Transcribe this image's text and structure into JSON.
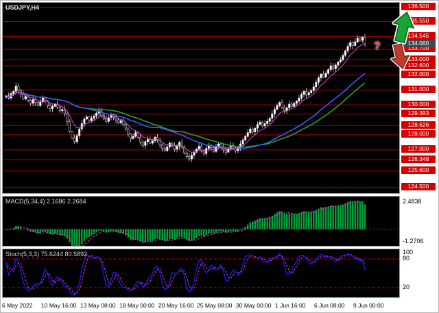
{
  "window": {
    "symbol_label": "USDJPY,H4"
  },
  "colors": {
    "chart_bg": "#000000",
    "level_line": "#b40000",
    "level_box_bg": "#d40000",
    "level_box_text": "#ffffff",
    "current_price_box_bg": "#45474b",
    "up_candle": "#ffffff",
    "down_candle": "#000000",
    "candle_stroke": "#ffffff",
    "ma_fast": "#e048e0",
    "ma_mid": "#3b5bff",
    "ma_slow": "#27a22e",
    "macd_hist": "#00a33c",
    "macd_signal": "#ff2fd0",
    "stoch_main": "#1c1cff",
    "stoch_signal": "#ff2fd0",
    "stoch_level": "#cc0000",
    "arrow_up": "#18a534",
    "arrow_up_edge": "#0b5c1d",
    "arrow_down": "#c23b2a",
    "arrow_down_edge": "#7a1f15",
    "question": "#cc2222"
  },
  "price_axis": {
    "max_label": "136.800",
    "max": 136.8,
    "min_label": "124.120",
    "min": 124.12,
    "current": {
      "label": "134.060",
      "value": 134.06
    },
    "levels": [
      {
        "value": 136.5,
        "label": "136.500"
      },
      {
        "value": 135.55,
        "label": "135.550"
      },
      {
        "value": 134.545,
        "label": "134.545"
      },
      {
        "value": 133.7,
        "label": "133.700"
      },
      {
        "value": 133.0,
        "label": "133.000"
      },
      {
        "value": 132.6,
        "label": "132.600"
      },
      {
        "value": 132.0,
        "label": "132.000"
      },
      {
        "value": 131.0,
        "label": "131.000"
      },
      {
        "value": 130.0,
        "label": "130.000"
      },
      {
        "value": 129.393,
        "label": "129.393"
      },
      {
        "value": 128.626,
        "label": "128.626"
      },
      {
        "value": 128.0,
        "label": "128.000"
      },
      {
        "value": 127.0,
        "label": "127.000"
      },
      {
        "value": 126.348,
        "label": "126.348"
      },
      {
        "value": 125.6,
        "label": "125.600"
      },
      {
        "value": 124.5,
        "label": "124.500"
      }
    ]
  },
  "time_axis": {
    "labels": [
      "6 May 2022",
      "10 May 16:00",
      "13 May 08:00",
      "18 May 00:00",
      "20 May 16:00",
      "25 May 08:00",
      "30 May 00:00",
      "1 Jun 16:00",
      "6 Jun 08:00",
      "9 Jun 00:00"
    ]
  },
  "indicators": {
    "macd": {
      "label": "MACD(5,34,4) 2.1686 2.2684",
      "axis_max_label": "2.4838",
      "axis_min_label": "-1.2706",
      "axis_max": 2.4838,
      "axis_min": -1.2706
    },
    "stoch": {
      "label": "Stoch(5,3,3) 75.6244 80.5892",
      "axis_labels": [
        "100",
        "80",
        "20"
      ],
      "upper": 80,
      "lower": 20
    }
  },
  "annotation": {
    "question_mark": "?"
  },
  "chart_data": {
    "type": "candlestick",
    "title": "USDJPY,H4",
    "symbol": "USDJPY",
    "timeframe": "H4",
    "y_range": [
      124.12,
      136.8
    ],
    "x_axis_labels": [
      "6 May 2022",
      "10 May 16:00",
      "13 May 08:00",
      "18 May 00:00",
      "20 May 16:00",
      "25 May 08:00",
      "30 May 00:00",
      "1 Jun 16:00",
      "6 Jun 08:00",
      "9 Jun 00:00"
    ],
    "horizontal_levels": [
      136.5,
      135.55,
      134.545,
      133.7,
      133.0,
      132.6,
      132.0,
      131.0,
      130.0,
      129.393,
      128.626,
      128.0,
      127.0,
      126.348,
      125.6,
      124.5
    ],
    "current_price": 134.06,
    "first_open": 130.5,
    "closes": [
      130.6,
      130.45,
      130.75,
      130.9,
      131.25,
      130.95,
      130.7,
      130.4,
      130.55,
      130.3,
      130.1,
      130.35,
      130.15,
      129.95,
      130.2,
      130.45,
      130.25,
      129.95,
      129.75,
      129.9,
      130.05,
      129.85,
      129.6,
      129.7,
      129.4,
      128.9,
      128.2,
      127.8,
      127.55,
      127.95,
      128.4,
      128.75,
      129.05,
      129.2,
      128.95,
      129.1,
      129.25,
      129.45,
      129.6,
      129.3,
      129.05,
      128.9,
      129.15,
      129.35,
      129.2,
      129.0,
      128.8,
      128.95,
      128.7,
      128.4,
      128.05,
      127.75,
      127.9,
      128.15,
      127.85,
      127.5,
      127.3,
      127.55,
      127.7,
      127.45,
      127.6,
      127.85,
      127.65,
      127.35,
      127.1,
      126.95,
      127.2,
      127.45,
      127.3,
      127.05,
      127.25,
      127.5,
      127.15,
      126.8,
      126.55,
      126.4,
      126.65,
      126.85,
      127.05,
      127.25,
      126.95,
      126.75,
      127.1,
      127.3,
      127.15,
      126.9,
      127.2,
      127.4,
      127.2,
      127.0,
      126.85,
      127.05,
      127.3,
      127.1,
      126.95,
      127.15,
      127.4,
      127.65,
      127.9,
      128.15,
      128.4,
      128.2,
      128.45,
      128.7,
      128.85,
      128.6,
      128.75,
      128.9,
      129.1,
      129.4,
      129.7,
      129.95,
      130.15,
      129.85,
      129.6,
      129.8,
      130.05,
      129.9,
      130.1,
      130.25,
      130.45,
      130.7,
      130.9,
      130.65,
      130.8,
      130.95,
      131.2,
      131.5,
      131.8,
      132.05,
      131.85,
      132.1,
      132.35,
      132.6,
      132.4,
      132.65,
      132.85,
      133.0,
      133.3,
      133.6,
      133.9,
      134.15,
      133.95,
      134.2,
      134.45,
      134.3,
      134.5,
      134.06
    ],
    "macd_axis": [
      2.4838,
      -1.2706
    ],
    "stoch_axis": [
      100,
      80,
      20
    ]
  }
}
